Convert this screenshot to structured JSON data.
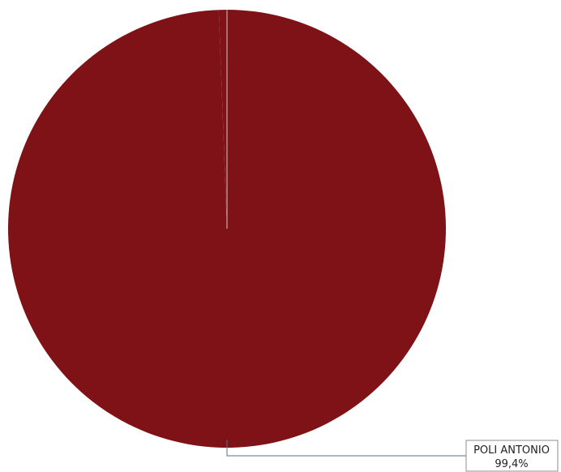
{
  "chart_data": {
    "type": "pie",
    "slices": [
      {
        "label": "POLI ANTONIO",
        "value": 99.4,
        "value_text": "99,4%",
        "color": "#7e1216"
      },
      {
        "label": "",
        "value": 0.6,
        "value_text": "",
        "color": "#7e1216"
      }
    ],
    "title": "",
    "legend": "none"
  },
  "colors": {
    "background": "#ffffff",
    "separator": "#c9c9c9",
    "leader_line": "#5b6f8a"
  }
}
